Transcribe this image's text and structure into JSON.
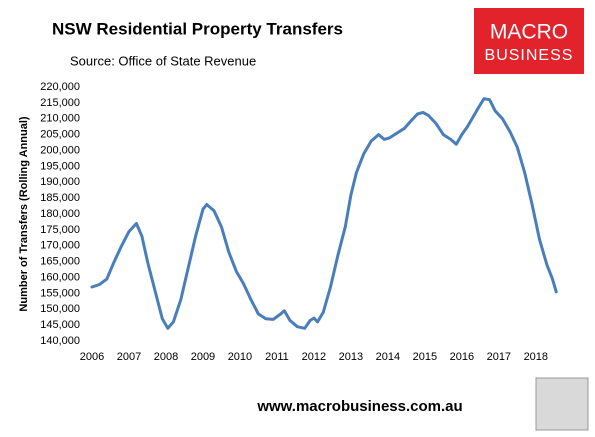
{
  "chart_data": {
    "type": "line",
    "title": "NSW Residential Property Transfers",
    "subtitle": "Source: Office of State Revenue",
    "y_label": "Number of Transfers (Rolling Annual)",
    "logo": [
      "MACRO",
      "BUSINESS"
    ],
    "footer": "www.macrobusiness.com.au",
    "x": [
      2006.0,
      2006.2,
      2006.4,
      2006.6,
      2006.8,
      2007.0,
      2007.2,
      2007.35,
      2007.5,
      2007.7,
      2007.9,
      2008.05,
      2008.2,
      2008.4,
      2008.6,
      2008.8,
      2009.0,
      2009.1,
      2009.3,
      2009.5,
      2009.7,
      2009.9,
      2010.1,
      2010.3,
      2010.5,
      2010.7,
      2010.9,
      2011.1,
      2011.2,
      2011.35,
      2011.55,
      2011.75,
      2011.9,
      2012.0,
      2012.1,
      2012.25,
      2012.45,
      2012.65,
      2012.85,
      2013.0,
      2013.15,
      2013.35,
      2013.55,
      2013.75,
      2013.9,
      2014.05,
      2014.25,
      2014.45,
      2014.6,
      2014.8,
      2014.95,
      2015.1,
      2015.3,
      2015.5,
      2015.7,
      2015.85,
      2016.0,
      2016.15,
      2016.3,
      2016.45,
      2016.6,
      2016.75,
      2016.9,
      2017.1,
      2017.3,
      2017.5,
      2017.7,
      2017.9,
      2018.1,
      2018.3,
      2018.45,
      2018.55
    ],
    "series": [
      {
        "name": "NSW Residential Property Transfers",
        "color": "#4a7ebb",
        "values": [
          157000,
          157800,
          159500,
          165000,
          170000,
          174500,
          177000,
          173000,
          165000,
          156000,
          147000,
          144000,
          146000,
          153000,
          163000,
          173000,
          181500,
          183000,
          181000,
          176000,
          168000,
          162000,
          158000,
          153000,
          148500,
          147000,
          146800,
          148500,
          149500,
          146500,
          144500,
          144000,
          146500,
          147200,
          146000,
          149000,
          157000,
          167000,
          176000,
          186000,
          193000,
          199000,
          203000,
          205000,
          203500,
          204000,
          205500,
          207000,
          209000,
          211500,
          212000,
          211000,
          208500,
          205000,
          203500,
          202000,
          205000,
          207500,
          210500,
          213500,
          216300,
          216000,
          212500,
          210000,
          206000,
          201000,
          193000,
          183000,
          172000,
          164000,
          159500,
          155500
        ]
      }
    ],
    "xlim": [
      2006,
      2018.6
    ],
    "xticks": [
      2006,
      2007,
      2008,
      2009,
      2010,
      2011,
      2012,
      2013,
      2014,
      2015,
      2016,
      2017,
      2018
    ],
    "ylim": [
      140000,
      220000
    ],
    "yticks": [
      {
        "value": 140000,
        "label": "140,000"
      },
      {
        "value": 145000,
        "label": "145,000"
      },
      {
        "value": 150000,
        "label": "150,000"
      },
      {
        "value": 155000,
        "label": "155,000"
      },
      {
        "value": 160000,
        "label": "160,000"
      },
      {
        "value": 165000,
        "label": "165,000"
      },
      {
        "value": 170000,
        "label": "170,000"
      },
      {
        "value": 175000,
        "label": "175,000"
      },
      {
        "value": 180000,
        "label": "180,000"
      },
      {
        "value": 185000,
        "label": "185,000"
      },
      {
        "value": 190000,
        "label": "190,000"
      },
      {
        "value": 195000,
        "label": "195,000"
      },
      {
        "value": 200000,
        "label": "200,000"
      },
      {
        "value": 205000,
        "label": "205,000"
      },
      {
        "value": 210000,
        "label": "210,000"
      },
      {
        "value": 215000,
        "label": "215,000"
      },
      {
        "value": 220000,
        "label": "220,000"
      }
    ],
    "grid": false
  }
}
